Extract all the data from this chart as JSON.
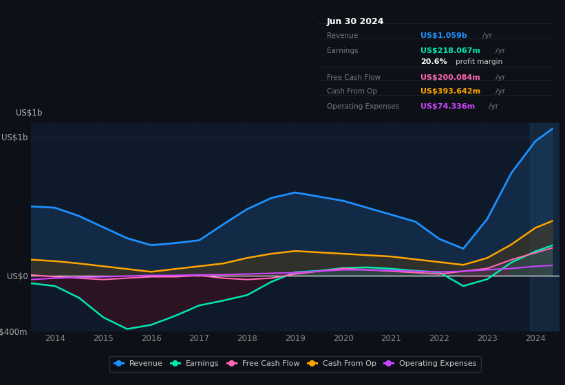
{
  "background_color": "#0d1117",
  "plot_bg_color": "#0e1a2a",
  "years": [
    2013.5,
    2014.0,
    2014.5,
    2015.0,
    2015.5,
    2016.0,
    2016.5,
    2017.0,
    2017.5,
    2018.0,
    2018.5,
    2019.0,
    2019.5,
    2020.0,
    2020.5,
    2021.0,
    2021.5,
    2022.0,
    2022.5,
    2023.0,
    2023.5,
    2024.0,
    2024.35
  ],
  "revenue": [
    500,
    490,
    430,
    350,
    270,
    220,
    235,
    255,
    370,
    480,
    560,
    600,
    570,
    540,
    490,
    440,
    390,
    265,
    195,
    410,
    740,
    970,
    1059
  ],
  "earnings": [
    -55,
    -75,
    -160,
    -300,
    -385,
    -355,
    -290,
    -215,
    -180,
    -140,
    -45,
    25,
    35,
    55,
    60,
    50,
    35,
    25,
    -75,
    -25,
    95,
    175,
    218
  ],
  "free_cash_flow": [
    5,
    -8,
    -18,
    -28,
    -18,
    -8,
    -8,
    2,
    -18,
    -28,
    -18,
    12,
    32,
    52,
    42,
    32,
    22,
    12,
    32,
    52,
    115,
    165,
    200
  ],
  "cash_from_op": [
    115,
    105,
    88,
    68,
    48,
    28,
    48,
    68,
    88,
    128,
    158,
    178,
    168,
    158,
    148,
    138,
    118,
    98,
    78,
    128,
    225,
    345,
    394
  ],
  "operating_expenses": [
    -28,
    -18,
    -12,
    -8,
    -3,
    2,
    2,
    6,
    7,
    12,
    17,
    22,
    32,
    42,
    42,
    37,
    32,
    27,
    32,
    42,
    52,
    67,
    74
  ],
  "xlim": [
    2013.5,
    2024.5
  ],
  "ylim": [
    -400,
    1100
  ],
  "ytick_vals": [
    -400,
    0,
    1000
  ],
  "ytick_labels": [
    "-US$400m",
    "US$0",
    "US$1b"
  ],
  "xtick_years": [
    2014,
    2015,
    2016,
    2017,
    2018,
    2019,
    2020,
    2021,
    2022,
    2023,
    2024
  ],
  "colors": {
    "revenue": "#1e90ff",
    "earnings": "#00e8b0",
    "free_cash_flow": "#ff69b4",
    "cash_from_op": "#ffa500",
    "operating_expenses": "#cc44ff"
  },
  "legend_items": [
    {
      "label": "Revenue",
      "color": "#1e90ff"
    },
    {
      "label": "Earnings",
      "color": "#00e8b0"
    },
    {
      "label": "Free Cash Flow",
      "color": "#ff69b4"
    },
    {
      "label": "Cash From Op",
      "color": "#ffa500"
    },
    {
      "label": "Operating Expenses",
      "color": "#cc44ff"
    }
  ],
  "info_box": {
    "date": "Jun 30 2024",
    "rows": [
      {
        "label": "Revenue",
        "value": "US$1.059b",
        "unit": "/yr",
        "value_color": "#1e90ff"
      },
      {
        "label": "Earnings",
        "value": "US$218.067m",
        "unit": "/yr",
        "value_color": "#00e8b0"
      },
      {
        "label": "",
        "value": "20.6%",
        "unit": "profit margin",
        "value_color": "#ffffff"
      },
      {
        "label": "Free Cash Flow",
        "value": "US$200.084m",
        "unit": "/yr",
        "value_color": "#ff69b4"
      },
      {
        "label": "Cash From Op",
        "value": "US$393.642m",
        "unit": "/yr",
        "value_color": "#ffa500"
      },
      {
        "label": "Operating Expenses",
        "value": "US$74.336m",
        "unit": "/yr",
        "value_color": "#cc44ff"
      }
    ]
  }
}
